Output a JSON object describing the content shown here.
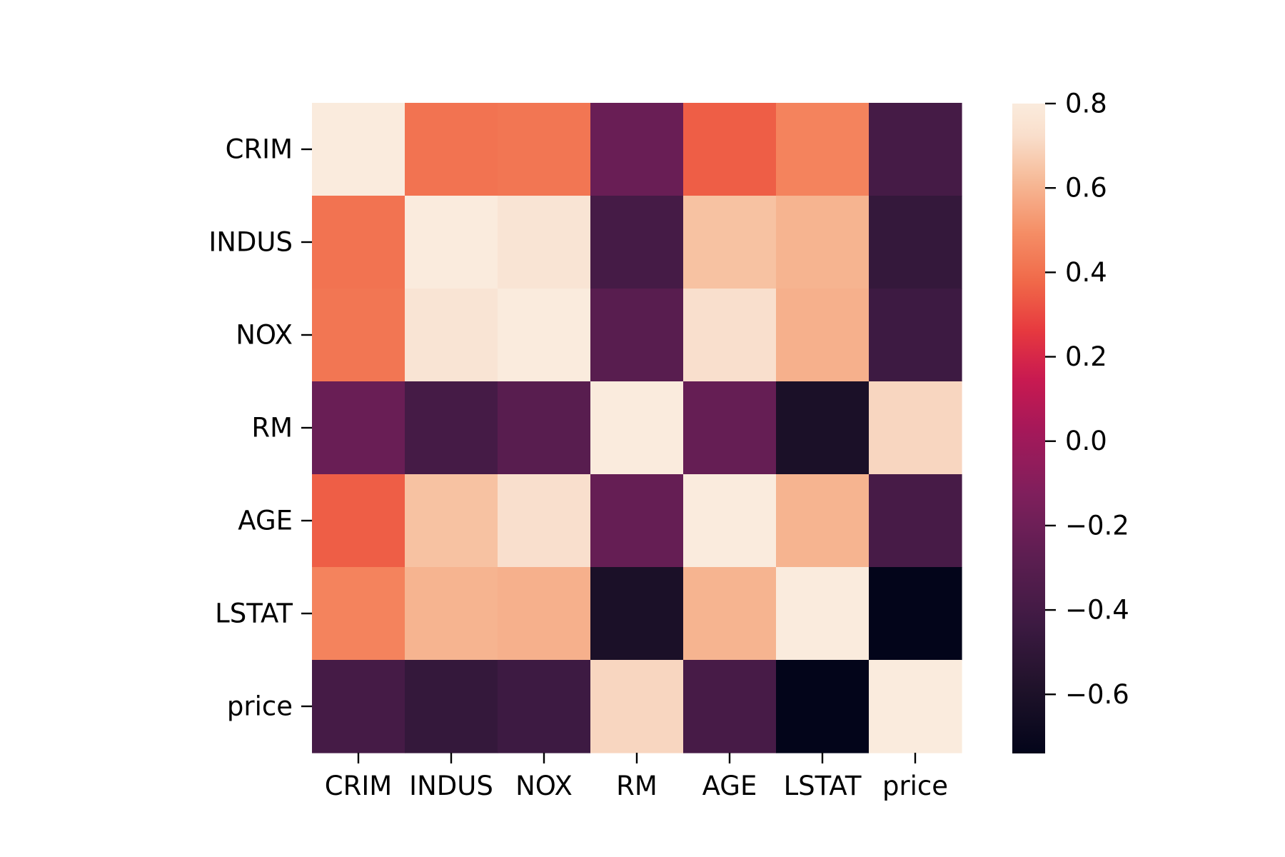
{
  "chart_data": {
    "type": "heatmap",
    "title": "",
    "xlabel": "",
    "ylabel": "",
    "x_categories": [
      "CRIM",
      "INDUS",
      "NOX",
      "RM",
      "AGE",
      "LSTAT",
      "price"
    ],
    "y_categories": [
      "CRIM",
      "INDUS",
      "NOX",
      "RM",
      "AGE",
      "LSTAT",
      "price"
    ],
    "values": [
      [
        1.0,
        0.41,
        0.42,
        -0.22,
        0.35,
        0.46,
        -0.39
      ],
      [
        0.41,
        1.0,
        0.76,
        -0.39,
        0.64,
        0.6,
        -0.48
      ],
      [
        0.42,
        0.76,
        1.0,
        -0.3,
        0.73,
        0.59,
        -0.43
      ],
      [
        -0.22,
        -0.39,
        -0.3,
        1.0,
        -0.24,
        -0.61,
        0.7
      ],
      [
        0.35,
        0.64,
        0.73,
        -0.24,
        1.0,
        0.6,
        -0.38
      ],
      [
        0.46,
        0.6,
        0.59,
        -0.61,
        0.6,
        1.0,
        -0.74
      ],
      [
        -0.39,
        -0.48,
        -0.43,
        0.7,
        -0.38,
        -0.74,
        1.0
      ]
    ],
    "colormap": "rocket",
    "colorbar": {
      "vmin": -0.74,
      "vmax": 0.8,
      "ticks": [
        0.8,
        0.6,
        0.4,
        0.2,
        0.0,
        -0.2,
        -0.4,
        -0.6
      ],
      "tick_labels": [
        "0.8",
        "0.6",
        "0.4",
        "0.2",
        "0.0",
        "−0.2",
        "−0.4",
        "−0.6"
      ]
    },
    "annotations": false,
    "grid": false
  }
}
